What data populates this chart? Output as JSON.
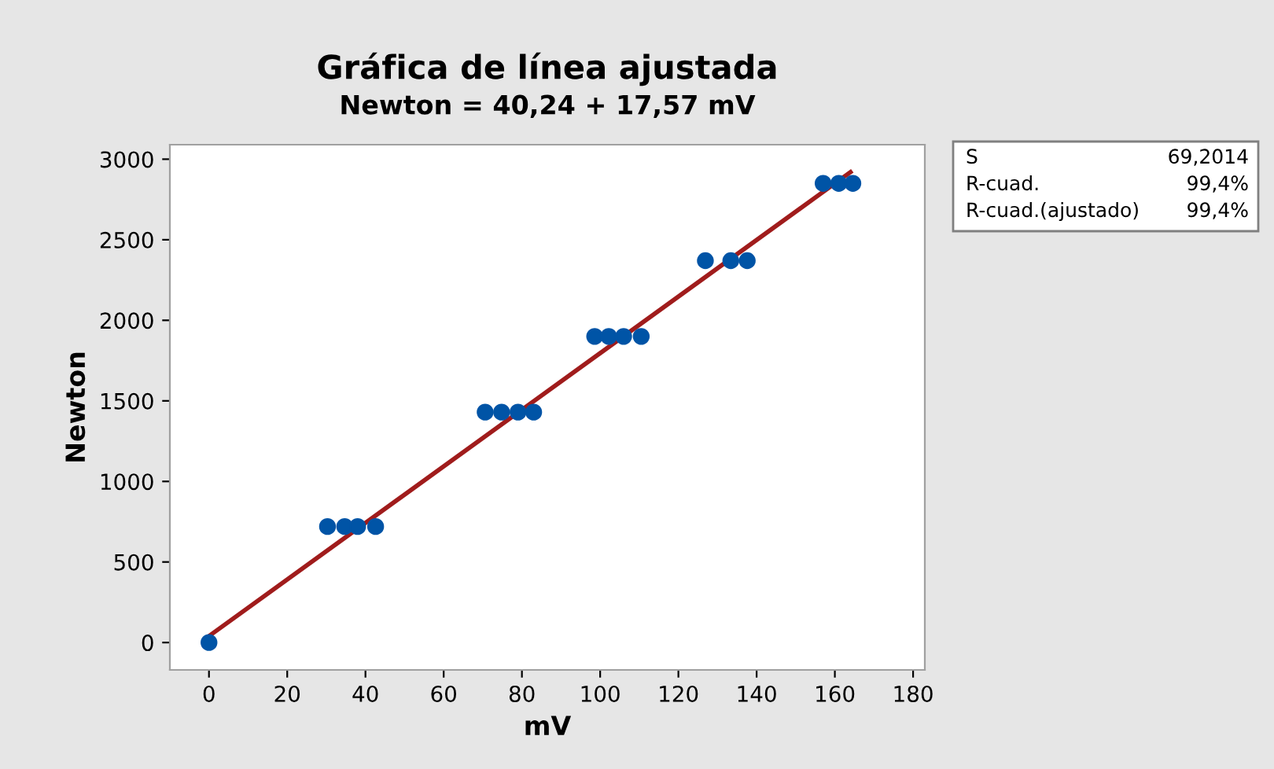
{
  "chart_data": {
    "type": "scatter",
    "title": "Gráfica de línea ajustada",
    "subtitle": "Newton = 40,24 + 17,57 mV",
    "xlabel": "mV",
    "ylabel": "Newton",
    "series": [
      {
        "color": "#0054a6",
        "marker": "circle",
        "x": [
          0,
          30.3,
          34.7,
          38,
          42.6,
          70.6,
          74.8,
          79,
          83,
          98.6,
          102.2,
          106,
          110.5,
          126.9,
          133.4,
          137.6,
          157,
          161,
          164.6
        ],
        "values": [
          0,
          720,
          720,
          720,
          720,
          1430,
          1430,
          1430,
          1430,
          1900,
          1900,
          1900,
          1900,
          2370,
          2370,
          2370,
          2850,
          2850,
          2850
        ]
      },
      {
        "type": "line",
        "color": "#a01c1c",
        "x": [
          0,
          164
        ],
        "values": [
          40,
          2920
        ]
      }
    ],
    "xlim": [
      -10,
      183
    ],
    "ylim": [
      -170,
      3090
    ],
    "xticks": [
      0,
      20,
      40,
      60,
      80,
      100,
      120,
      140,
      160,
      180
    ],
    "yticks": [
      0,
      500,
      1000,
      1500,
      2000,
      2500,
      3000
    ],
    "grid": false,
    "annotations": [
      "S",
      "69,2014",
      "R-cuad.",
      "99,4%",
      "R-cuad.(ajustado)",
      "99,4%"
    ]
  }
}
